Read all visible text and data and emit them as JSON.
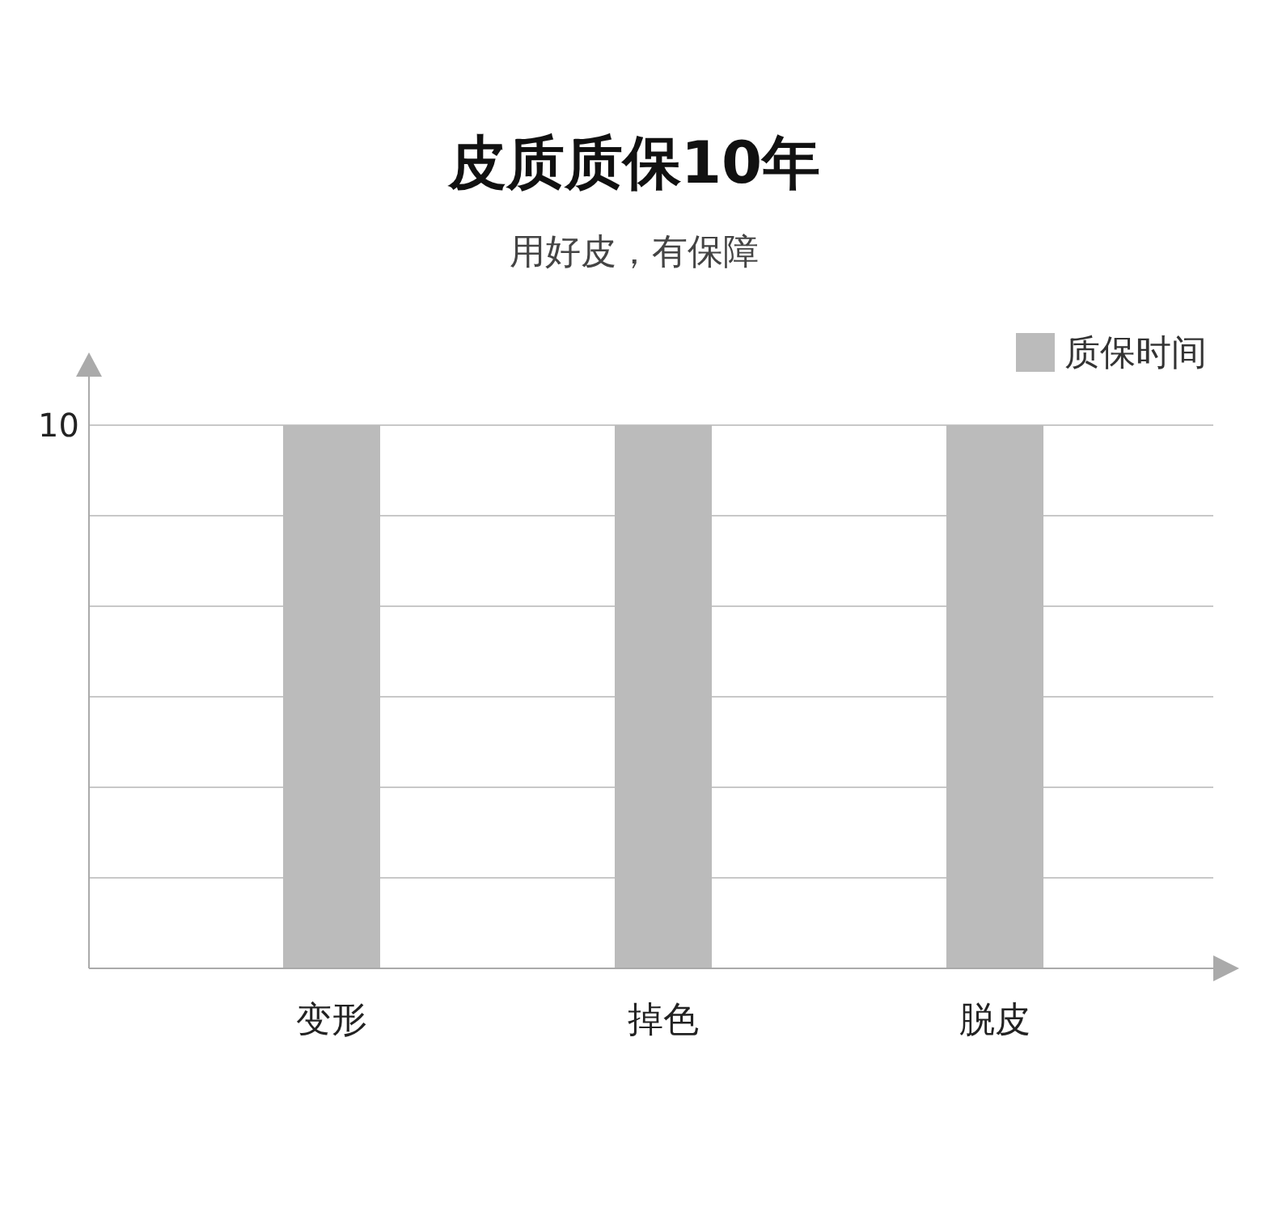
{
  "chart_data": {
    "type": "bar",
    "title": "皮质质保10年",
    "subtitle": "用好皮，有保障",
    "categories": [
      "变形",
      "掉色",
      "脱皮"
    ],
    "series": [
      {
        "name": "质保时间",
        "color": "#bbbbbb",
        "values": [
          10,
          10,
          10
        ]
      }
    ],
    "ylim": [
      0,
      10
    ],
    "yticks": [
      {
        "value": 0,
        "label": null
      },
      {
        "value": 1.667,
        "label": null
      },
      {
        "value": 3.333,
        "label": null
      },
      {
        "value": 5,
        "label": null
      },
      {
        "value": 6.667,
        "label": null
      },
      {
        "value": 8.333,
        "label": null
      },
      10
    ],
    "grid": "y",
    "legend": "top right"
  }
}
